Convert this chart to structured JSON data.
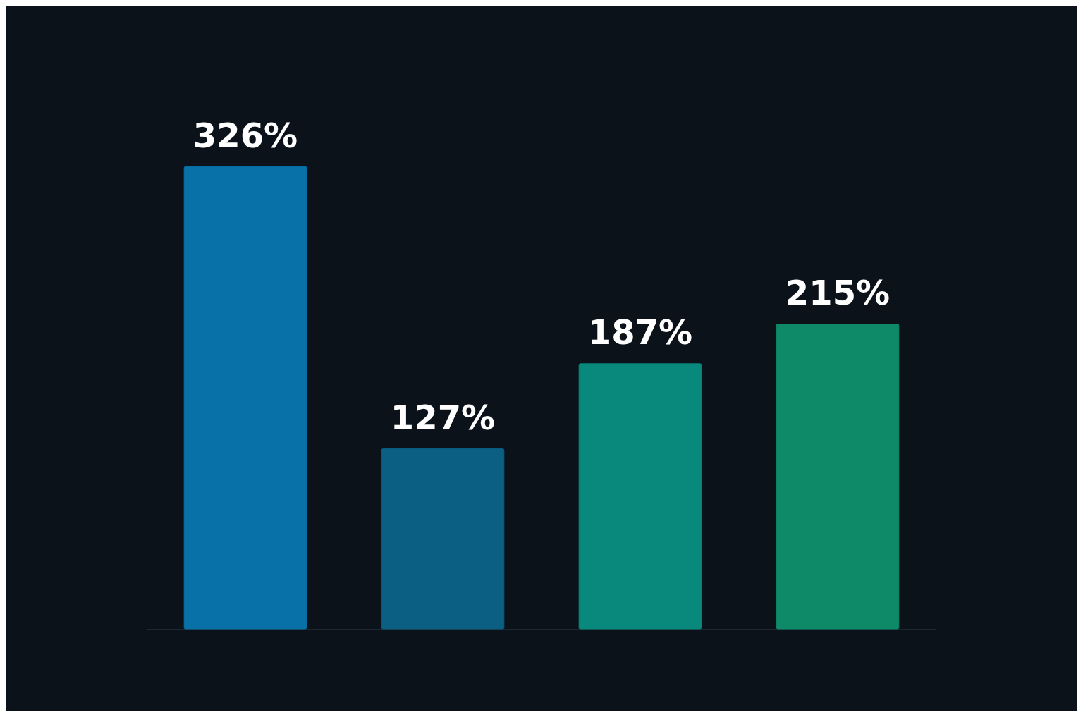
{
  "chart_data": {
    "type": "bar",
    "categories": [
      null,
      null,
      null,
      null
    ],
    "values": [
      326,
      127,
      187,
      215
    ],
    "colors": [
      "#0872a8",
      "#0a5f82",
      "#08897c",
      "#0e8a68"
    ],
    "value_labels": [
      "326%",
      "127%",
      "187%",
      "215%"
    ]
  }
}
